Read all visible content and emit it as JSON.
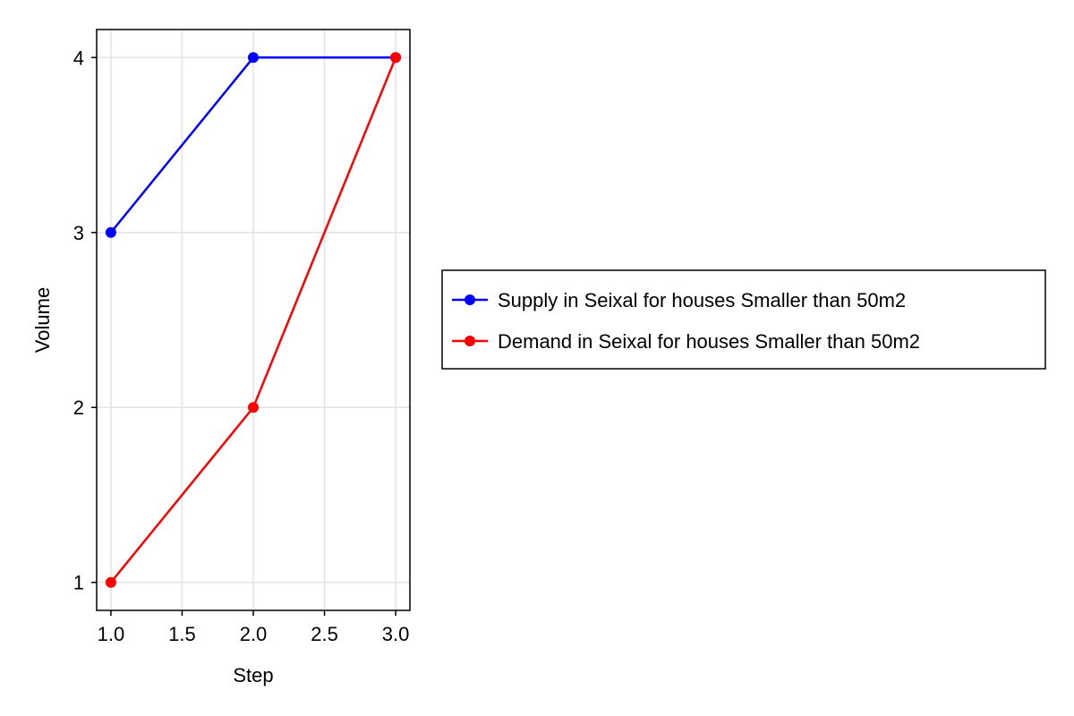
{
  "chart_data": {
    "type": "line",
    "xlabel": "Step",
    "ylabel": "Volume",
    "xlim": [
      0.9,
      3.1
    ],
    "ylim": [
      0.84,
      4.16
    ],
    "x_ticks": [
      1.0,
      1.5,
      2.0,
      2.5,
      3.0
    ],
    "x_tick_labels": [
      "1.0",
      "1.5",
      "2.0",
      "2.5",
      "3.0"
    ],
    "y_ticks": [
      1,
      2,
      3,
      4
    ],
    "y_tick_labels": [
      "1",
      "2",
      "3",
      "4"
    ],
    "grid": true,
    "legend_position": "right",
    "series": [
      {
        "name": "Supply in Seixal for houses Smaller than 50m2",
        "color": "#0000ff",
        "x": [
          1,
          2,
          3
        ],
        "y": [
          3,
          4,
          4
        ]
      },
      {
        "name": "Demand in Seixal for houses Smaller than 50m2",
        "color": "#ff0000",
        "x": [
          1,
          2,
          3
        ],
        "y": [
          1,
          2,
          4
        ]
      }
    ]
  }
}
